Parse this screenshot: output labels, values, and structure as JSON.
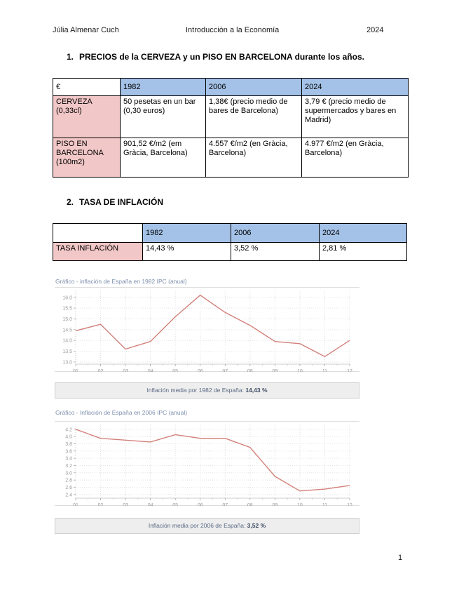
{
  "colors": {
    "table_header_blue": "#a4c2e8",
    "table_label_pink": "#f2c7c7",
    "chart_line_red": "#d2807a",
    "caption_bg": "#eeeeee"
  },
  "header": {
    "author": "Júlia Almenar Cuch",
    "course": "Introducción a la Economía",
    "year": "2024"
  },
  "sections": {
    "s1": {
      "number": "1.",
      "title": "PRECIOS de la CERVEZA y un PISO EN BARCELONA durante los años."
    },
    "s2": {
      "number": "2.",
      "title": "TASA DE INFLACIÓN"
    }
  },
  "tables": {
    "prices": {
      "header": [
        "€",
        "1982",
        "2006",
        "2024"
      ],
      "rows": [
        {
          "label": "CERVEZA (0,33cl)",
          "values": [
            "50 pesetas en un bar (0,30 euros)",
            "1,38€ (precio medio de bares de Barcelona)",
            "3,79 € (precio medio de supermercados y bares en Madrid)"
          ]
        },
        {
          "label": "PISO EN BARCELONA (100m2)",
          "values": [
            "901,52 €/m2 (em Gràcia, Barcelona)",
            "4.557 €/m2 (en Gràcia, Barcelona)",
            "4.977 €/m2 (en Gràcia, Barcelona)"
          ]
        }
      ]
    },
    "inflation": {
      "header": [
        "",
        "1982",
        "2006",
        "2024"
      ],
      "rows": [
        {
          "label": "TASA INFLACIÓN",
          "values": [
            "14,43 %",
            "3,52 %",
            "2,81 %"
          ]
        }
      ]
    }
  },
  "chart_data": [
    {
      "type": "line",
      "title": "Gráfico - inflación de España en 1982 IPC (anual)",
      "x": [
        "01",
        "02",
        "03",
        "04",
        "05",
        "06",
        "07",
        "08",
        "09",
        "10",
        "11",
        "12"
      ],
      "values": [
        14.45,
        14.75,
        13.6,
        13.95,
        15.1,
        16.1,
        15.3,
        14.7,
        13.95,
        13.85,
        13.25,
        14.0
      ],
      "ylim": [
        12.9,
        16.35
      ],
      "yticks": [
        13.0,
        13.5,
        14.0,
        14.5,
        15.0,
        15.5,
        16.0
      ],
      "grid": true,
      "legend": "none",
      "line_color": "#d2807a",
      "caption_prefix": "Inflación media por 1982 de España: ",
      "caption_value": "14,43 %"
    },
    {
      "type": "line",
      "title": "Gráfico - Inflación de España en 2006 IPC (anual)",
      "x": [
        "01",
        "02",
        "03",
        "04",
        "05",
        "06",
        "07",
        "08",
        "09",
        "10",
        "11",
        "12"
      ],
      "values": [
        4.2,
        3.95,
        3.9,
        3.85,
        4.05,
        3.95,
        3.95,
        3.7,
        2.9,
        2.5,
        2.55,
        2.65
      ],
      "ylim": [
        2.3,
        4.35
      ],
      "yticks": [
        2.4,
        2.6,
        2.8,
        3.0,
        3.2,
        3.4,
        3.6,
        3.8,
        4.0,
        4.2
      ],
      "grid": true,
      "legend": "none",
      "line_color": "#d2807a",
      "caption_prefix": "Inflación media por 2006 de España: ",
      "caption_value": "3,52 %"
    }
  ],
  "page_number": "1"
}
